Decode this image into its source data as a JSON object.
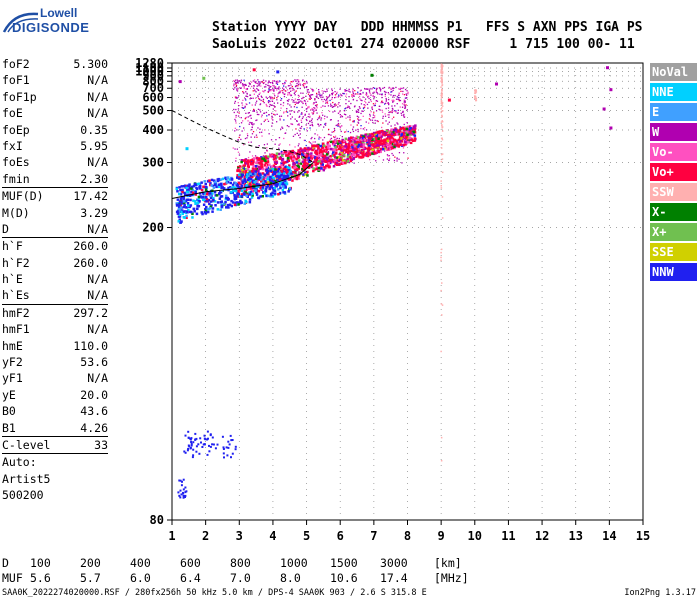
{
  "logo": {
    "line1": "Lowell",
    "line2": "DIGISONDE"
  },
  "header": {
    "labels": "Station YYYY DAY   DDD HHMMSS P1   FFS S AXN PPS IGA PS",
    "values": "SaoLuis 2022 Oct01 274 020000 RSF     1 715 100 00- 11"
  },
  "params": {
    "group1": [
      {
        "name": "foF2",
        "value": "5.300"
      },
      {
        "name": "foF1",
        "value": "N/A"
      },
      {
        "name": "foF1p",
        "value": "N/A"
      },
      {
        "name": "foE",
        "value": "N/A"
      },
      {
        "name": "foEp",
        "value": "0.35"
      },
      {
        "name": "fxI",
        "value": "5.95"
      },
      {
        "name": "foEs",
        "value": "N/A"
      },
      {
        "name": "fmin",
        "value": "2.30"
      }
    ],
    "group2": [
      {
        "name": "MUF(D)",
        "value": "17.42"
      },
      {
        "name": "M(D)",
        "value": "3.29"
      },
      {
        "name": "D",
        "value": "N/A"
      }
    ],
    "group3": [
      {
        "name": "h`F",
        "value": "260.0"
      },
      {
        "name": "h`F2",
        "value": "260.0"
      },
      {
        "name": "h`E",
        "value": "N/A"
      },
      {
        "name": "h`Es",
        "value": "N/A"
      }
    ],
    "group4": [
      {
        "name": "hmF2",
        "value": "297.2"
      },
      {
        "name": "hmF1",
        "value": "N/A"
      },
      {
        "name": "hmE",
        "value": "110.0"
      },
      {
        "name": "yF2",
        "value": "53.6"
      },
      {
        "name": "yF1",
        "value": "N/A"
      },
      {
        "name": "yE",
        "value": "20.0"
      },
      {
        "name": "B0",
        "value": "43.6"
      },
      {
        "name": "B1",
        "value": "4.26"
      }
    ],
    "clevel": {
      "name": "C-level",
      "value": "33"
    },
    "auto": [
      "Auto:",
      "Artist5",
      "500200"
    ]
  },
  "legend": [
    {
      "label": "NoVal",
      "color": "#a0a0a0"
    },
    {
      "label": "NNE",
      "color": "#00d0ff"
    },
    {
      "label": "E",
      "color": "#40a0ff"
    },
    {
      "label": "W",
      "color": "#b000b0"
    },
    {
      "label": "Vo-",
      "color": "#ff50c0"
    },
    {
      "label": "Vo+",
      "color": "#ff0040"
    },
    {
      "label": "SSW",
      "color": "#ffb0b0"
    },
    {
      "label": "X-",
      "color": "#008000"
    },
    {
      "label": "X+",
      "color": "#70c050"
    },
    {
      "label": "SSE",
      "color": "#d0d000"
    },
    {
      "label": "NNW",
      "color": "#2020f0"
    }
  ],
  "muf_table": {
    "d_label": "D",
    "d_values": [
      "100",
      "200",
      "400",
      "600",
      "800",
      "1000",
      "1500",
      "3000"
    ],
    "d_unit": "[km]",
    "muf_label": "MUF",
    "muf_values": [
      "5.6",
      "5.7",
      "6.0",
      "6.4",
      "7.0",
      "8.0",
      "10.6",
      "17.4"
    ],
    "muf_unit": "[MHz]"
  },
  "footer": {
    "left": "SAA0K_2022274020000.RSF / 280fx256h 50 kHz 5.0 km / DPS-4 SAA0K 903 / 2.6 S 315.8 E",
    "right": "Ion2Png 1.3.17"
  },
  "chart_data": {
    "type": "scatter",
    "title": "",
    "xlabel": "",
    "ylabel": "",
    "xlim": [
      1,
      15
    ],
    "ylim": [
      80,
      1280
    ],
    "y_scale": "reciprocal",
    "grid": true,
    "x_ticks": [
      "1",
      "2",
      "3",
      "4",
      "5",
      "6",
      "7",
      "8",
      "9",
      "10",
      "11",
      "12",
      "13",
      "14",
      "15"
    ],
    "y_ticks": [
      "80",
      "200",
      "300",
      "400",
      "500",
      "600",
      "700",
      "800",
      "900",
      "1000",
      "1100",
      "1280"
    ],
    "legend_position": "right",
    "regions": [
      {
        "name": "F trace Vo+",
        "x": [
          2.9,
          8.2
        ],
        "y": [
          270,
          420
        ],
        "color": "#ff0040"
      },
      {
        "name": "low F trace NNW",
        "x": [
          1.1,
          4.5
        ],
        "y": [
          210,
          290
        ],
        "color": "#2020f0"
      },
      {
        "name": "spread F W",
        "x": [
          2.8,
          8.0
        ],
        "y": [
          300,
          840
        ],
        "color": "#b000b0"
      },
      {
        "name": "Es trace NNW",
        "x": [
          1.3,
          2.9
        ],
        "y": [
          90,
          100
        ],
        "color": "#2020f0"
      }
    ]
  }
}
